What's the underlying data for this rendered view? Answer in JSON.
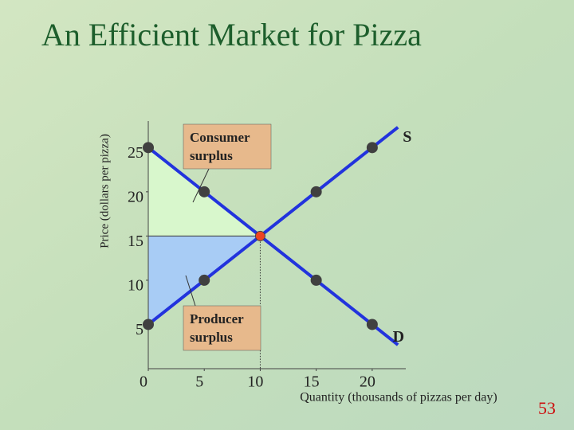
{
  "chart_data": {
    "type": "line",
    "title": "An Efficient Market for Pizza",
    "x_label": "Quantity (thousands of pizzas per day)",
    "y_label": "Price (dollars per pizza)",
    "xlim": [
      0,
      23
    ],
    "ylim": [
      0,
      28
    ],
    "xticks": [
      0,
      5,
      10,
      15,
      20
    ],
    "yticks": [
      5,
      10,
      15,
      20,
      25
    ],
    "series": [
      {
        "name": "S",
        "color": "#2233dd",
        "x": [
          0,
          5,
          15,
          20
        ],
        "values": [
          5,
          10,
          20,
          25
        ]
      },
      {
        "name": "D",
        "color": "#2233dd",
        "x": [
          0,
          5,
          15,
          20
        ],
        "values": [
          25,
          20,
          10,
          5
        ]
      }
    ],
    "equilibrium": {
      "x": 10,
      "y": 15,
      "color": "#ee4422"
    },
    "annotations": [
      "Consumer surplus",
      "Producer surplus"
    ]
  },
  "slide_number": "53"
}
